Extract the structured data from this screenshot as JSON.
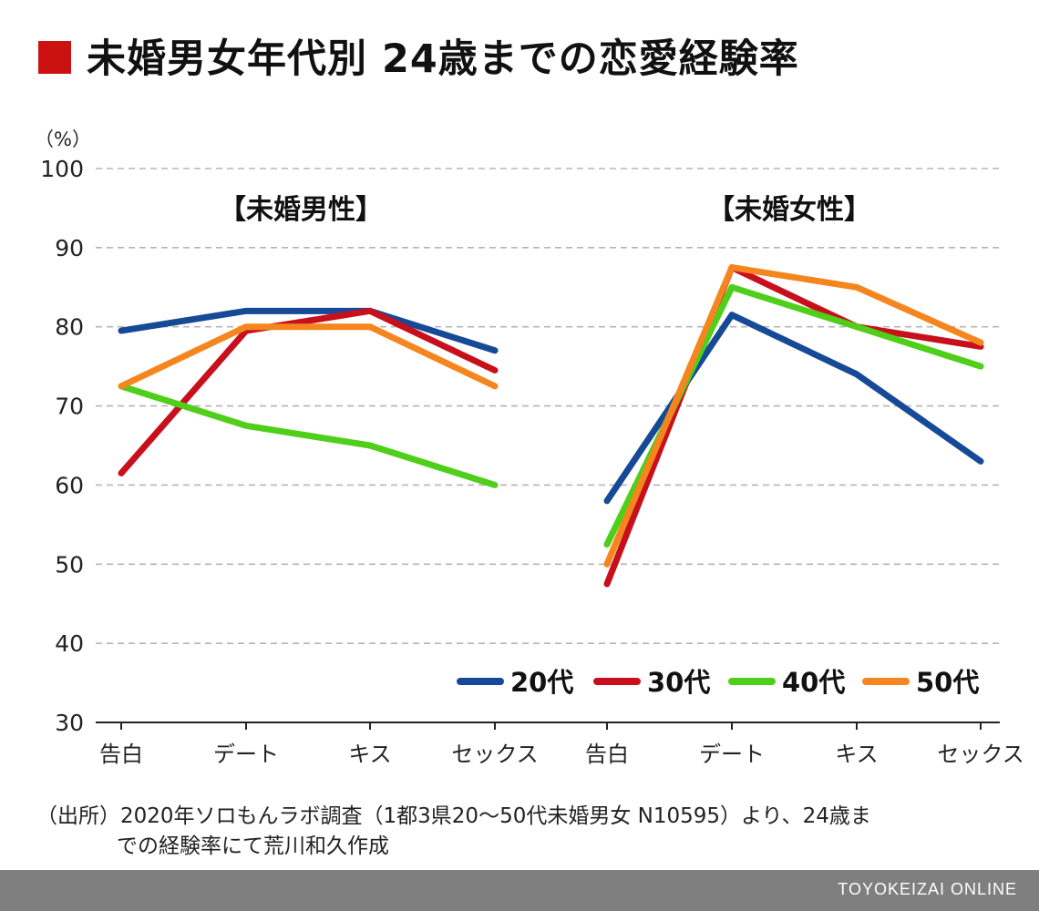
{
  "title": "未婚男女年代別 24歳までの恋愛経験率",
  "source_line1": "（出所）2020年ソロもんラボ調査（1都3県20〜50代未婚男女 N10595）より、24歳ま",
  "source_line2": "での経験率にて荒川和久作成",
  "footer": "TOYOKEIZAI ONLINE",
  "chart_data": {
    "type": "line",
    "unit_label": "（%）",
    "ylim": [
      30,
      100
    ],
    "yticks": [
      30,
      40,
      50,
      60,
      70,
      80,
      90,
      100
    ],
    "grid": true,
    "legend_placement": "bottom-right",
    "panels": [
      {
        "title": "【未婚男性】",
        "categories": [
          "告白",
          "デート",
          "キス",
          "セックス"
        ],
        "series": [
          {
            "name": "20代",
            "color": "#174a96",
            "values": [
              79.5,
              82,
              82,
              77
            ]
          },
          {
            "name": "30代",
            "color": "#c8101c",
            "values": [
              61.5,
              79.5,
              82,
              74.5
            ]
          },
          {
            "name": "40代",
            "color": "#4fcf1a",
            "values": [
              72.5,
              67.5,
              65,
              60
            ]
          },
          {
            "name": "50代",
            "color": "#f5861f",
            "values": [
              72.5,
              80,
              80,
              72.5
            ]
          }
        ]
      },
      {
        "title": "【未婚女性】",
        "categories": [
          "告白",
          "デート",
          "キス",
          "セックス"
        ],
        "series": [
          {
            "name": "20代",
            "color": "#174a96",
            "values": [
              58,
              81.5,
              74,
              63
            ]
          },
          {
            "name": "30代",
            "color": "#c8101c",
            "values": [
              47.5,
              87.5,
              80,
              77.5
            ]
          },
          {
            "name": "40代",
            "color": "#4fcf1a",
            "values": [
              52.5,
              85,
              80,
              75
            ]
          },
          {
            "name": "50代",
            "color": "#f5861f",
            "values": [
              50,
              87.5,
              85,
              78
            ]
          }
        ]
      }
    ],
    "legend": [
      {
        "name": "20代",
        "color": "#174a96"
      },
      {
        "name": "30代",
        "color": "#c8101c"
      },
      {
        "name": "40代",
        "color": "#4fcf1a"
      },
      {
        "name": "50代",
        "color": "#f5861f"
      }
    ]
  }
}
